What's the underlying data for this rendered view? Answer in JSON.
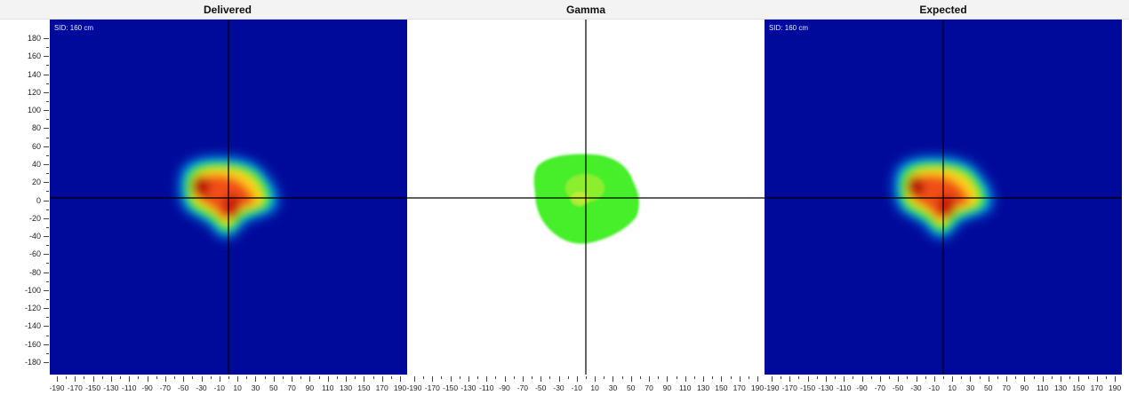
{
  "panels": {
    "delivered": {
      "title": "Delivered",
      "sid_label": "SID: 160 cm"
    },
    "gamma": {
      "title": "Gamma"
    },
    "expected": {
      "title": "Expected",
      "sid_label": "SID: 160 cm"
    }
  },
  "axes": {
    "y_labels": [
      "180",
      "160",
      "140",
      "120",
      "100",
      "80",
      "60",
      "40",
      "20",
      "0",
      "-20",
      "-40",
      "-60",
      "-80",
      "-100",
      "-120",
      "-140",
      "-160",
      "-180"
    ],
    "x_labels": [
      "-190",
      "-170",
      "-150",
      "-130",
      "-110",
      "-90",
      "-70",
      "-50",
      "-30",
      "-10",
      "10",
      "30",
      "50",
      "70",
      "90",
      "110",
      "130",
      "150",
      "170",
      "190"
    ]
  },
  "colors": {
    "map_background": "#000a9a",
    "gamma_pass": "#46ee2c",
    "dose_high": "#c41e10",
    "crosshair": "#000000"
  }
}
